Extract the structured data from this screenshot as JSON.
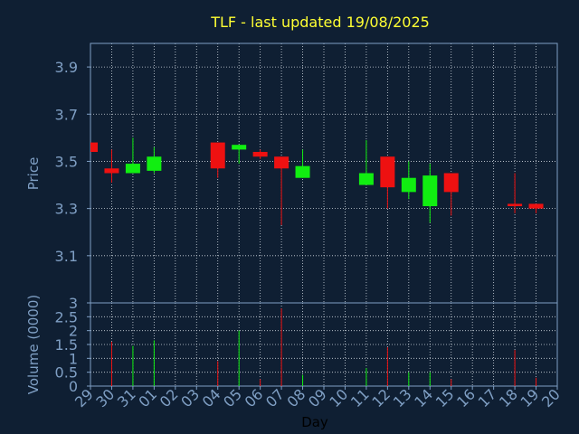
{
  "chart_data": {
    "type": "candlestick",
    "title": "TLF - last updated 19/08/2025",
    "xlabel": "Day",
    "price_panel": {
      "ylabel": "Price",
      "ylim": [
        2.9,
        4.0
      ],
      "yticks": [
        "3.1",
        "3.3",
        "3.5",
        "3.7",
        "3.9"
      ],
      "grid": true
    },
    "volume_panel": {
      "ylabel": "Volume (0000)",
      "ylim": [
        0,
        3
      ],
      "yticks": [
        "0",
        "0.5",
        "1",
        "1.5",
        "2",
        "2.5",
        "3"
      ],
      "grid": true
    },
    "days": [
      "29",
      "30",
      "31",
      "01",
      "02",
      "03",
      "04",
      "05",
      "06",
      "07",
      "08",
      "09",
      "10",
      "11",
      "12",
      "13",
      "14",
      "15",
      "16",
      "17",
      "18",
      "19",
      "20"
    ],
    "candles": [
      {
        "day": "29",
        "open": 3.58,
        "high": 3.58,
        "low": 3.54,
        "close": 3.54
      },
      {
        "day": "30",
        "open": 3.47,
        "high": 3.55,
        "low": 3.41,
        "close": 3.45
      },
      {
        "day": "31",
        "open": 3.45,
        "high": 3.6,
        "low": 3.45,
        "close": 3.49
      },
      {
        "day": "01",
        "open": 3.46,
        "high": 3.56,
        "low": 3.45,
        "close": 3.52
      },
      {
        "day": "04",
        "open": 3.58,
        "high": 3.58,
        "low": 3.43,
        "close": 3.47
      },
      {
        "day": "05",
        "open": 3.55,
        "high": 3.57,
        "low": 3.49,
        "close": 3.57
      },
      {
        "day": "06",
        "open": 3.54,
        "high": 3.55,
        "low": 3.51,
        "close": 3.52
      },
      {
        "day": "07",
        "open": 3.52,
        "high": 3.52,
        "low": 3.23,
        "close": 3.47
      },
      {
        "day": "08",
        "open": 3.43,
        "high": 3.55,
        "low": 3.43,
        "close": 3.48
      },
      {
        "day": "11",
        "open": 3.4,
        "high": 3.59,
        "low": 3.4,
        "close": 3.45
      },
      {
        "day": "12",
        "open": 3.52,
        "high": 3.52,
        "low": 3.3,
        "close": 3.39
      },
      {
        "day": "13",
        "open": 3.37,
        "high": 3.5,
        "low": 3.34,
        "close": 3.43
      },
      {
        "day": "14",
        "open": 3.31,
        "high": 3.49,
        "low": 3.24,
        "close": 3.44
      },
      {
        "day": "15",
        "open": 3.45,
        "high": 3.45,
        "low": 3.27,
        "close": 3.37
      },
      {
        "day": "18",
        "open": 3.32,
        "high": 3.45,
        "low": 3.28,
        "close": 3.31
      },
      {
        "day": "19",
        "open": 3.32,
        "high": 3.32,
        "low": 3.28,
        "close": 3.3
      }
    ],
    "volume": [
      {
        "day": "30",
        "value": 1.6,
        "direction": "down"
      },
      {
        "day": "31",
        "value": 1.45,
        "direction": "up"
      },
      {
        "day": "01",
        "value": 1.65,
        "direction": "up"
      },
      {
        "day": "04",
        "value": 0.9,
        "direction": "down"
      },
      {
        "day": "05",
        "value": 2.0,
        "direction": "up"
      },
      {
        "day": "06",
        "value": 0.25,
        "direction": "down"
      },
      {
        "day": "07",
        "value": 2.8,
        "direction": "down"
      },
      {
        "day": "08",
        "value": 0.4,
        "direction": "up"
      },
      {
        "day": "11",
        "value": 0.65,
        "direction": "up"
      },
      {
        "day": "12",
        "value": 1.4,
        "direction": "down"
      },
      {
        "day": "13",
        "value": 0.5,
        "direction": "up"
      },
      {
        "day": "14",
        "value": 0.5,
        "direction": "up"
      },
      {
        "day": "15",
        "value": 0.25,
        "direction": "down"
      },
      {
        "day": "18",
        "value": 1.3,
        "direction": "down"
      },
      {
        "day": "19",
        "value": 0.3,
        "direction": "down"
      }
    ],
    "colors": {
      "background": "#0f1f33",
      "title": "#ffff33",
      "axis_text": "#7f9fc4",
      "axis_line": "#7f9fc4",
      "grid": "#d0d8e0",
      "up": "#11ee11",
      "down": "#ee1111",
      "xlabel": "#000000"
    }
  }
}
